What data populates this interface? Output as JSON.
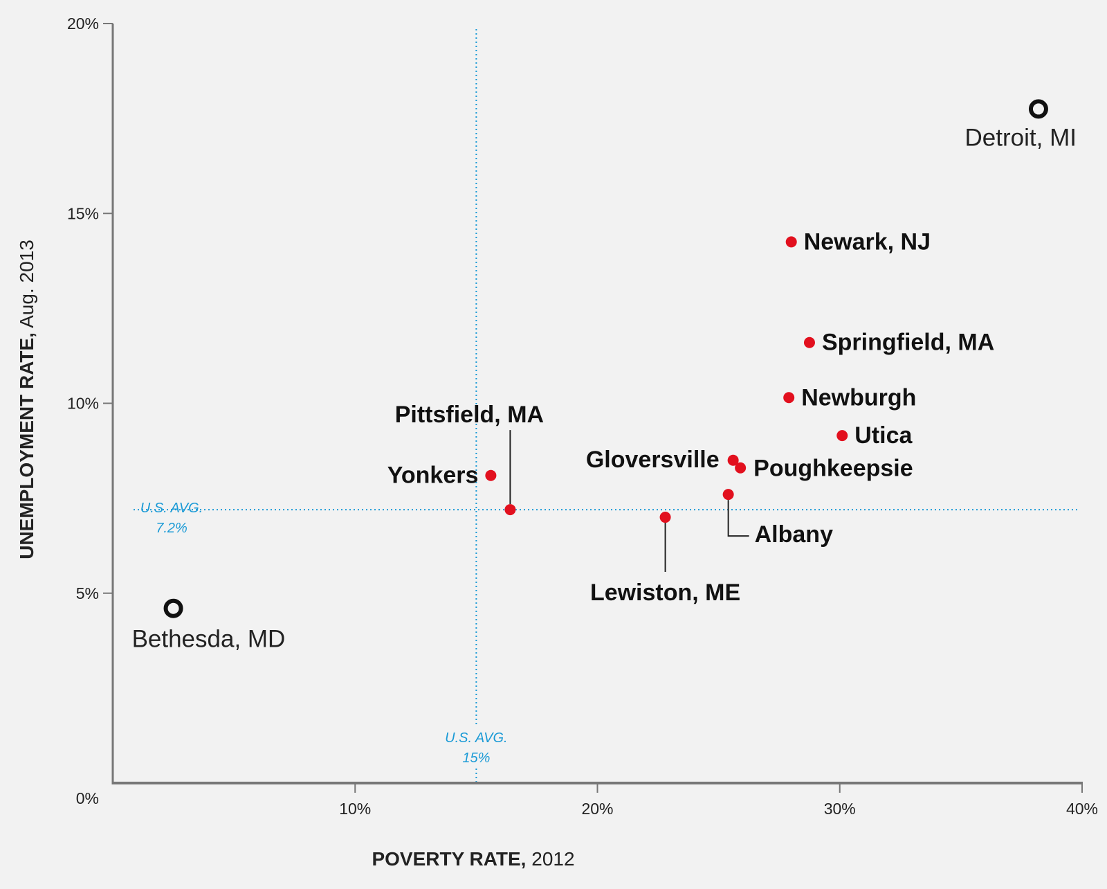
{
  "chart_data": {
    "type": "scatter",
    "xlabel_bold": "POVERTY RATE,",
    "xlabel_rest": " 2012",
    "ylabel_bold": "UNEMPLOYMENT RATE,",
    "ylabel_rest": " Aug. 2013",
    "xlim": [
      0,
      40
    ],
    "ylim": [
      0,
      20
    ],
    "x_ticks": [
      {
        "v": 0,
        "label": "0%"
      },
      {
        "v": 10,
        "label": "10%"
      },
      {
        "v": 20,
        "label": "20%"
      },
      {
        "v": 30,
        "label": "30%"
      },
      {
        "v": 40,
        "label": "40%"
      }
    ],
    "y_ticks": [
      {
        "v": 5,
        "label": "5%"
      },
      {
        "v": 10,
        "label": "10%"
      },
      {
        "v": 15,
        "label": "15%"
      },
      {
        "v": 20,
        "label": "20%"
      }
    ],
    "grid": false,
    "reference_lines": {
      "y": {
        "value": 7.2,
        "label_line1": "U.S. AVG.",
        "label_line2": "7.2%"
      },
      "x": {
        "value": 15,
        "label_line1": "U.S. AVG.",
        "label_line2": "15%"
      },
      "color": "#1a9ad6"
    },
    "colors": {
      "highlight": "#e2101e",
      "reference": "#222222"
    },
    "points": [
      {
        "name": "Detroit, MI",
        "x": 38.2,
        "y": 17.75,
        "style": "open"
      },
      {
        "name": "Bethesda, MD",
        "x": 2.5,
        "y": 4.6,
        "style": "open"
      },
      {
        "name": "Newark, NJ",
        "x": 28.0,
        "y": 14.25,
        "style": "highlight"
      },
      {
        "name": "Springfield, MA",
        "x": 28.75,
        "y": 11.6,
        "style": "highlight"
      },
      {
        "name": "Newburgh",
        "x": 27.9,
        "y": 10.15,
        "style": "highlight"
      },
      {
        "name": "Utica",
        "x": 30.1,
        "y": 9.15,
        "style": "highlight"
      },
      {
        "name": "Gloversville",
        "x": 25.6,
        "y": 8.5,
        "style": "highlight"
      },
      {
        "name": "Poughkeepsie",
        "x": 25.9,
        "y": 8.3,
        "style": "highlight"
      },
      {
        "name": "Albany",
        "x": 25.4,
        "y": 7.6,
        "style": "highlight"
      },
      {
        "name": "Lewiston, ME",
        "x": 22.8,
        "y": 7.0,
        "style": "highlight"
      },
      {
        "name": "Yonkers",
        "x": 15.6,
        "y": 8.1,
        "style": "highlight"
      },
      {
        "name": "Pittsfield, MA",
        "x": 16.4,
        "y": 7.2,
        "style": "highlight"
      }
    ]
  }
}
